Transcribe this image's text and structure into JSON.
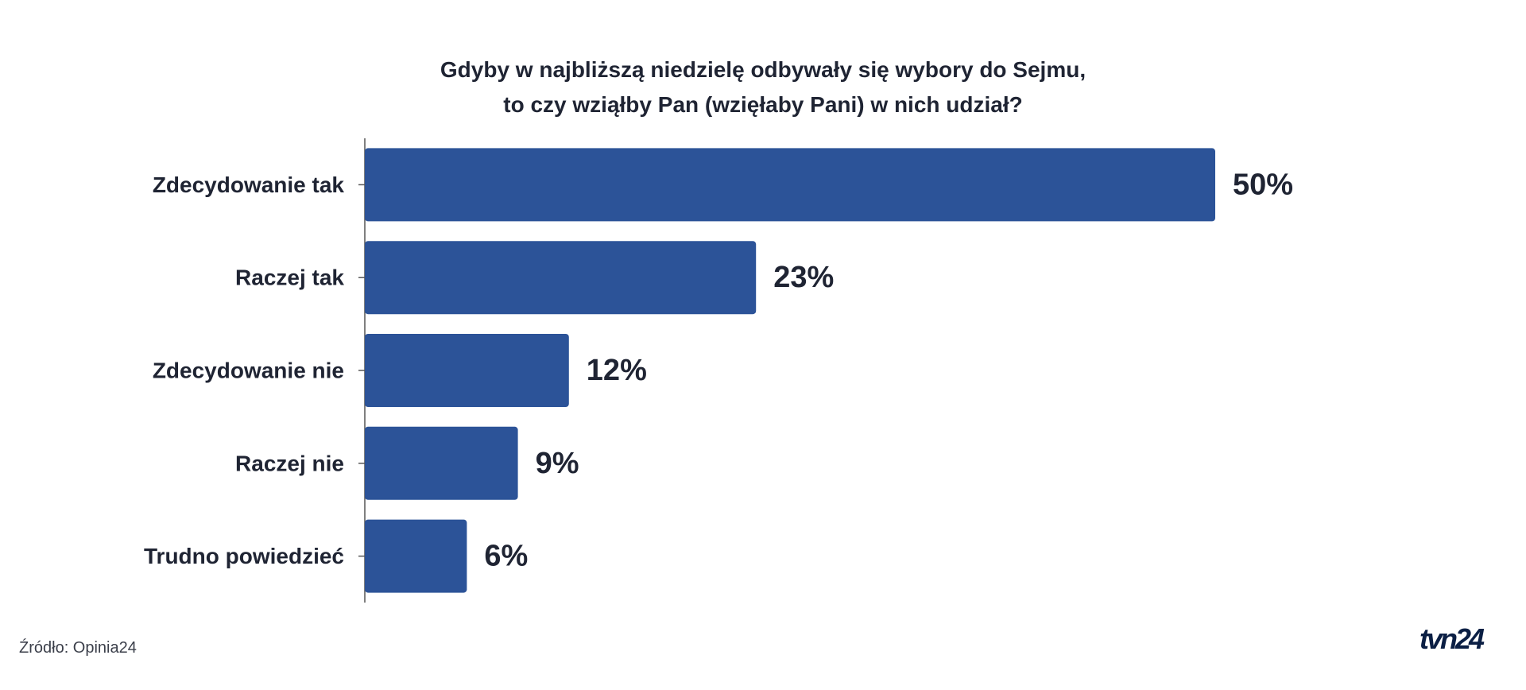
{
  "chart_data": {
    "type": "bar",
    "orientation": "horizontal",
    "title_lines": [
      "Gdyby w najbliższą niedzielę odbywały się wybory do Sejmu,",
      "to czy wziąłby Pan (wzięłaby Pani) w nich udział?"
    ],
    "categories": [
      "Zdecydowanie tak",
      "Raczej tak",
      "Zdecydowanie nie",
      "Raczej nie",
      "Trudno powiedzieć"
    ],
    "values": [
      50,
      23,
      12,
      9,
      6
    ],
    "value_labels": [
      "50%",
      "23%",
      "12%",
      "9%",
      "6%"
    ],
    "xlim": [
      0,
      50
    ],
    "bar_color": "#2c5398",
    "grid": false,
    "legend": "none"
  },
  "footer": {
    "source": "Źródło: Opinia24",
    "logo_text": "tvn24"
  },
  "colors": {
    "text": "#1f2433",
    "logo": "#0b1f44"
  }
}
